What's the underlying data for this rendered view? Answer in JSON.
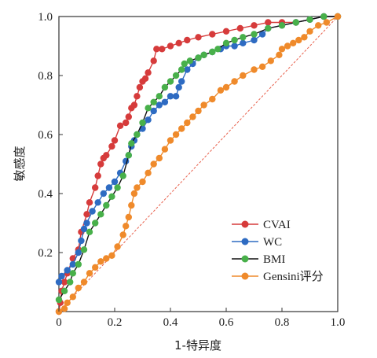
{
  "chart_data": {
    "type": "line",
    "xlabel": "1-特异度",
    "ylabel": "敏感度",
    "xlim": [
      0,
      1
    ],
    "ylim": [
      0,
      1
    ],
    "xticks": [
      "0",
      "0.2",
      "0.4",
      "0.6",
      "0.8",
      "1.0"
    ],
    "yticks": [
      "0.2",
      "0.4",
      "0.6",
      "0.8",
      "1.0"
    ],
    "grid": false,
    "legend_position": "bottom-right",
    "reference_line": {
      "x": [
        0,
        1
      ],
      "y": [
        0,
        1
      ],
      "color": "#e8604c",
      "style": "dashed"
    },
    "series": [
      {
        "name": "CVAI",
        "color": "#d63b3b",
        "x": [
          0,
          0.005,
          0.01,
          0.02,
          0.03,
          0.05,
          0.07,
          0.08,
          0.1,
          0.11,
          0.13,
          0.14,
          0.15,
          0.16,
          0.17,
          0.19,
          0.2,
          0.22,
          0.24,
          0.25,
          0.26,
          0.27,
          0.28,
          0.29,
          0.3,
          0.31,
          0.32,
          0.34,
          0.35,
          0.37,
          0.4,
          0.43,
          0.46,
          0.5,
          0.55,
          0.6,
          0.65,
          0.7,
          0.75,
          0.8,
          0.85,
          0.9,
          0.95,
          1.0
        ],
        "y": [
          0,
          0.03,
          0.07,
          0.1,
          0.13,
          0.18,
          0.21,
          0.27,
          0.33,
          0.37,
          0.42,
          0.46,
          0.5,
          0.52,
          0.53,
          0.56,
          0.58,
          0.63,
          0.64,
          0.66,
          0.69,
          0.7,
          0.73,
          0.76,
          0.78,
          0.79,
          0.81,
          0.85,
          0.89,
          0.89,
          0.9,
          0.91,
          0.92,
          0.93,
          0.94,
          0.95,
          0.96,
          0.97,
          0.98,
          0.98,
          0.98,
          0.99,
          1.0,
          1.0
        ]
      },
      {
        "name": "WC",
        "color": "#2e6bc2",
        "x": [
          0,
          0.01,
          0.03,
          0.05,
          0.07,
          0.08,
          0.09,
          0.1,
          0.12,
          0.14,
          0.16,
          0.18,
          0.2,
          0.22,
          0.24,
          0.25,
          0.26,
          0.27,
          0.28,
          0.3,
          0.32,
          0.34,
          0.36,
          0.38,
          0.4,
          0.42,
          0.43,
          0.44,
          0.46,
          0.48,
          0.5,
          0.52,
          0.55,
          0.58,
          0.6,
          0.63,
          0.66,
          0.7,
          0.73,
          0.75,
          0.8,
          0.85,
          0.9,
          0.95,
          1.0
        ],
        "y": [
          0.1,
          0.12,
          0.14,
          0.16,
          0.2,
          0.24,
          0.28,
          0.3,
          0.34,
          0.37,
          0.4,
          0.42,
          0.44,
          0.47,
          0.51,
          0.53,
          0.56,
          0.58,
          0.6,
          0.62,
          0.65,
          0.68,
          0.7,
          0.71,
          0.73,
          0.73,
          0.76,
          0.78,
          0.82,
          0.84,
          0.86,
          0.87,
          0.88,
          0.89,
          0.9,
          0.9,
          0.91,
          0.92,
          0.94,
          0.96,
          0.97,
          0.98,
          0.99,
          1.0,
          1.0
        ]
      },
      {
        "name": "BMI",
        "color": "#48b04a",
        "x": [
          0,
          0.02,
          0.04,
          0.05,
          0.07,
          0.09,
          0.11,
          0.13,
          0.15,
          0.17,
          0.19,
          0.21,
          0.23,
          0.25,
          0.26,
          0.28,
          0.3,
          0.32,
          0.34,
          0.36,
          0.38,
          0.4,
          0.42,
          0.44,
          0.45,
          0.47,
          0.5,
          0.52,
          0.55,
          0.57,
          0.6,
          0.63,
          0.66,
          0.7,
          0.75,
          0.8,
          0.85,
          0.9,
          0.95,
          1.0
        ],
        "y": [
          0.04,
          0.07,
          0.1,
          0.13,
          0.16,
          0.21,
          0.27,
          0.3,
          0.33,
          0.36,
          0.39,
          0.42,
          0.46,
          0.53,
          0.57,
          0.6,
          0.64,
          0.69,
          0.71,
          0.73,
          0.76,
          0.78,
          0.8,
          0.82,
          0.84,
          0.85,
          0.86,
          0.87,
          0.88,
          0.89,
          0.91,
          0.92,
          0.93,
          0.94,
          0.96,
          0.97,
          0.98,
          0.99,
          1.0,
          1.0
        ]
      },
      {
        "name": "Gensini评分",
        "color": "#ef8a2b",
        "x": [
          0,
          0.02,
          0.03,
          0.05,
          0.07,
          0.09,
          0.11,
          0.13,
          0.15,
          0.17,
          0.19,
          0.21,
          0.23,
          0.24,
          0.25,
          0.26,
          0.27,
          0.28,
          0.3,
          0.32,
          0.34,
          0.36,
          0.38,
          0.4,
          0.42,
          0.44,
          0.46,
          0.48,
          0.5,
          0.52,
          0.55,
          0.58,
          0.6,
          0.63,
          0.66,
          0.7,
          0.73,
          0.76,
          0.79,
          0.8,
          0.82,
          0.84,
          0.86,
          0.88,
          0.9,
          0.93,
          0.96,
          1.0
        ],
        "y": [
          0,
          0.01,
          0.03,
          0.05,
          0.08,
          0.1,
          0.13,
          0.15,
          0.17,
          0.18,
          0.19,
          0.22,
          0.26,
          0.29,
          0.32,
          0.36,
          0.4,
          0.42,
          0.44,
          0.47,
          0.5,
          0.52,
          0.55,
          0.58,
          0.6,
          0.62,
          0.64,
          0.66,
          0.68,
          0.7,
          0.72,
          0.75,
          0.76,
          0.78,
          0.8,
          0.82,
          0.83,
          0.85,
          0.87,
          0.89,
          0.9,
          0.91,
          0.92,
          0.93,
          0.95,
          0.97,
          0.98,
          1.0
        ]
      }
    ]
  }
}
